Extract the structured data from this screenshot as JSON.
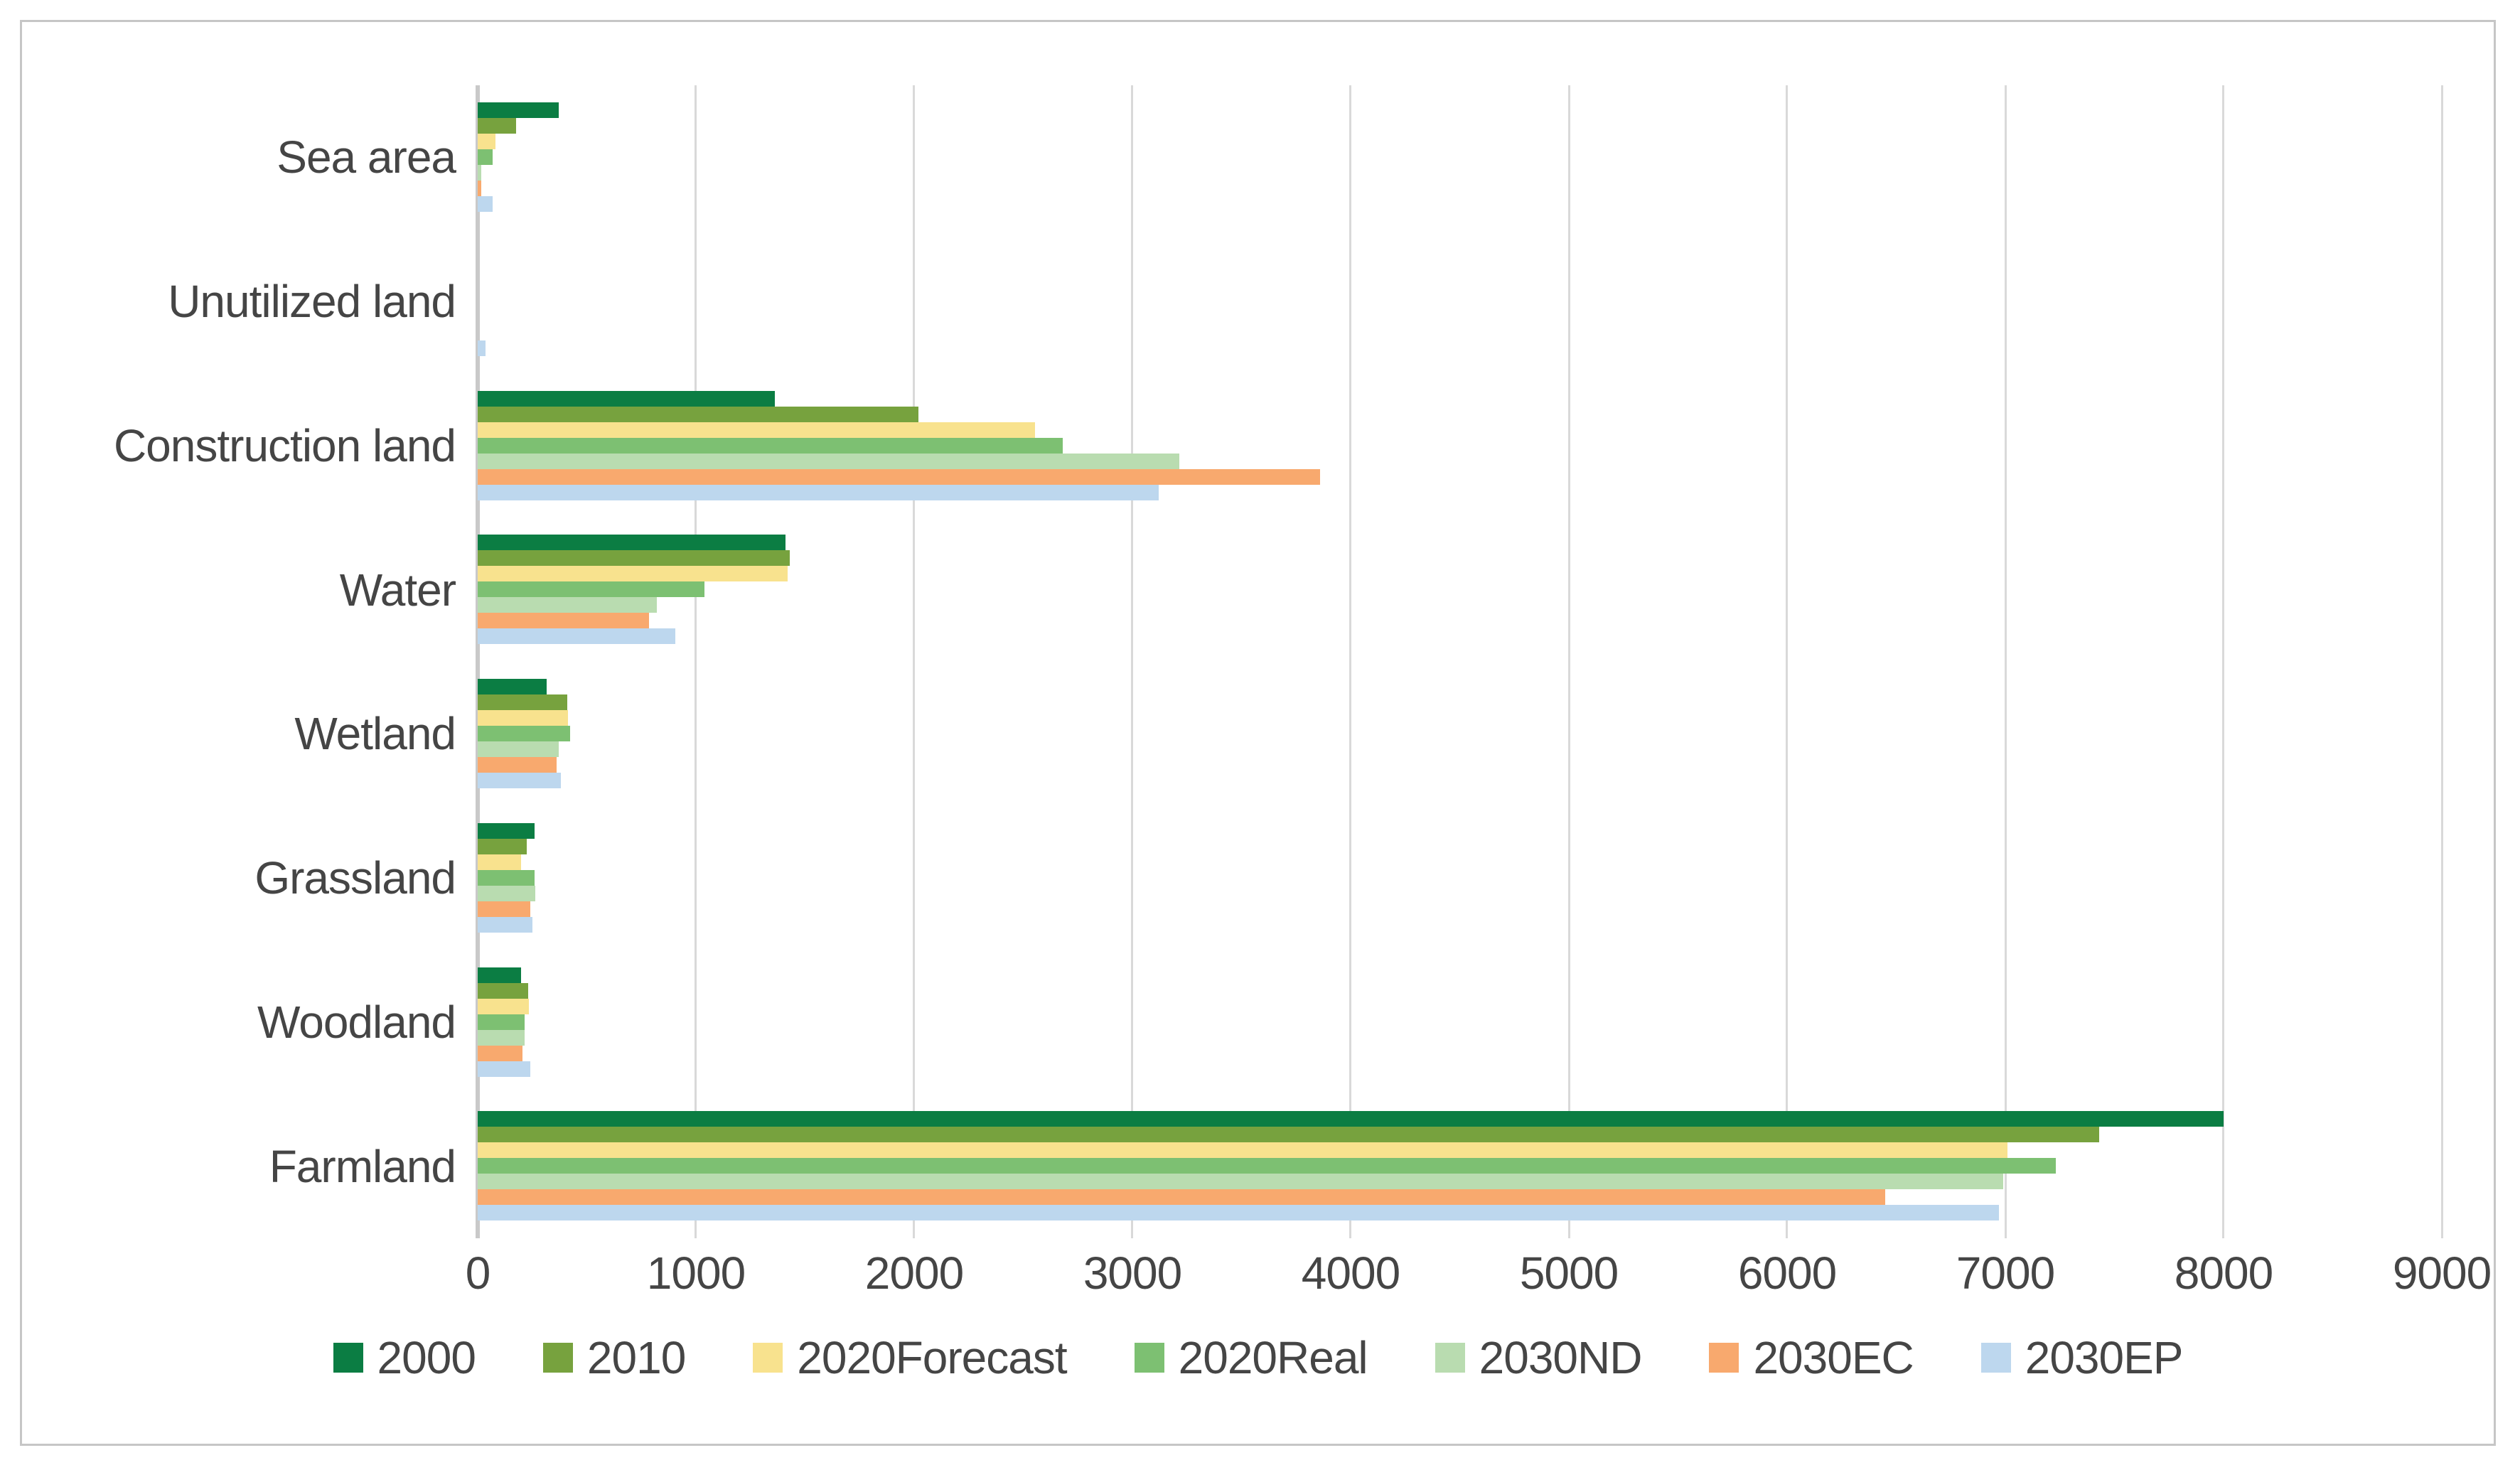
{
  "frame": {
    "background": "#FFFFFF",
    "border_color": "#C6C6C6"
  },
  "chart_data": {
    "type": "bar",
    "orientation": "horizontal",
    "title": "",
    "xlabel": "",
    "ylabel": "",
    "xlim": [
      0,
      9000
    ],
    "x_ticks": [
      0,
      1000,
      2000,
      3000,
      4000,
      5000,
      6000,
      7000,
      8000,
      9000
    ],
    "grid": true,
    "gridline_color": "#D9D9D9",
    "axis_line_color": "#C9C9C9",
    "text_color": "#454545",
    "legend_position": "bottom",
    "categories": [
      "Sea area",
      "Unutilized land",
      "Construction land",
      "Water",
      "Wetland",
      "Grassland",
      "Woodland",
      "Farmland"
    ],
    "series": [
      {
        "name": "2000",
        "color": "#0B7D43",
        "values": [
          370,
          0,
          1360,
          1410,
          315,
          260,
          200,
          8000
        ]
      },
      {
        "name": "2010",
        "color": "#77A23E",
        "values": [
          175,
          0,
          2020,
          1430,
          410,
          225,
          230,
          7430
        ]
      },
      {
        "name": "2020Forecast",
        "color": "#F8E28E",
        "values": [
          80,
          0,
          2555,
          1420,
          415,
          200,
          235,
          7010
        ]
      },
      {
        "name": "2020Real",
        "color": "#7DC072",
        "values": [
          70,
          0,
          2680,
          1040,
          425,
          260,
          215,
          7230
        ]
      },
      {
        "name": "2030ND",
        "color": "#B9DCB0",
        "values": [
          15,
          0,
          3215,
          820,
          370,
          265,
          215,
          6990
        ]
      },
      {
        "name": "2030EC",
        "color": "#F8A96E",
        "values": [
          15,
          0,
          3860,
          785,
          360,
          240,
          205,
          6450
        ]
      },
      {
        "name": "2030EP",
        "color": "#BDD7EE",
        "values": [
          70,
          35,
          3120,
          905,
          380,
          250,
          240,
          6970
        ]
      }
    ]
  }
}
